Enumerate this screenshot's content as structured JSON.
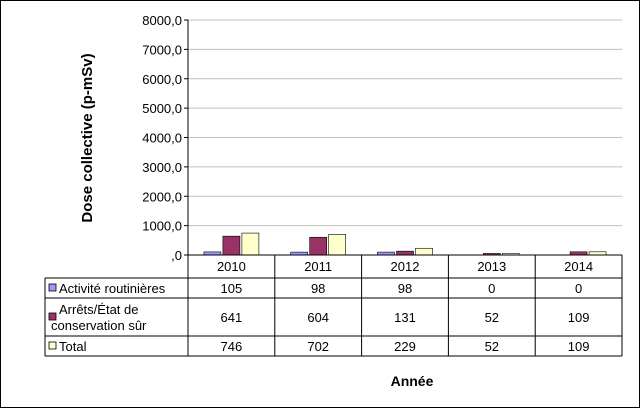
{
  "chart_data": {
    "type": "bar",
    "categories": [
      "2010",
      "2011",
      "2012",
      "2013",
      "2014"
    ],
    "series": [
      {
        "name": "Activité routinières",
        "values": [
          105,
          98,
          98,
          0,
          0
        ],
        "color": "#9999FF",
        "labels": [
          "105",
          "98",
          "98",
          "0",
          "0"
        ]
      },
      {
        "name": "Arrêts/État de conservation sûr",
        "name_lines": [
          "Arrêts/État de",
          "conservation sûr"
        ],
        "values": [
          641,
          604,
          131,
          52,
          109
        ],
        "color": "#993366",
        "labels": [
          "641",
          "604",
          "131",
          "52",
          "109"
        ]
      },
      {
        "name": "Total",
        "values": [
          746,
          702,
          229,
          52,
          109
        ],
        "color": "#FFFFCC",
        "labels": [
          "746",
          "702",
          "229",
          "52",
          "109"
        ]
      }
    ],
    "ylabel": "Dose collective (p-mSv)",
    "xlabel": "Année",
    "ylim": [
      0,
      8000
    ],
    "yticks": [
      0,
      1000,
      2000,
      3000,
      4000,
      5000,
      6000,
      7000,
      8000
    ],
    "ytick_labels": [
      ",0",
      "1000,0",
      "2000,0",
      "3000,0",
      "4000,0",
      "5000,0",
      "6000,0",
      "7000,0",
      "8000,0"
    ],
    "grid": true,
    "legend": "data-table"
  }
}
